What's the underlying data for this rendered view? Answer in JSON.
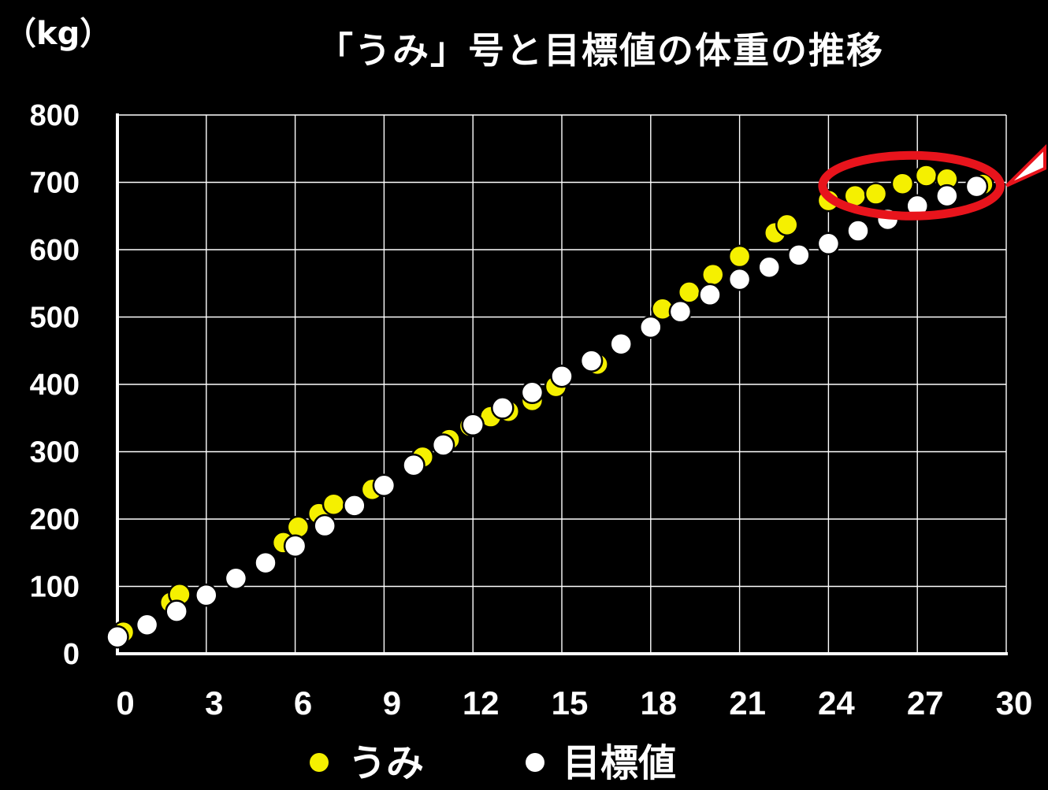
{
  "chart_data": {
    "type": "scatter",
    "title": "「うみ」号と目標値の体重の推移",
    "ylabel": "（kg）",
    "xlabel": "",
    "xlim": [
      0,
      30
    ],
    "ylim": [
      0,
      800
    ],
    "x_ticks": [
      "0",
      "3",
      "6",
      "9",
      "12",
      "15",
      "18",
      "21",
      "24",
      "27",
      "30"
    ],
    "y_ticks": [
      "0",
      "100",
      "200",
      "300",
      "400",
      "500",
      "600",
      "700",
      "800"
    ],
    "grid": true,
    "legend_position": "bottom",
    "highlight": {
      "shape": "ellipse",
      "color": "#e8141c",
      "x_range": [
        23.8,
        29.8
      ],
      "y_range": [
        650,
        740
      ],
      "pointer": "right"
    },
    "series": [
      {
        "name": "うみ",
        "color": "#f5f000",
        "points": [
          [
            0.2,
            32
          ],
          [
            1.8,
            76
          ],
          [
            2.1,
            88
          ],
          [
            5.6,
            165
          ],
          [
            6.1,
            188
          ],
          [
            6.8,
            208
          ],
          [
            7.3,
            222
          ],
          [
            8.6,
            244
          ],
          [
            10.3,
            292
          ],
          [
            11.2,
            318
          ],
          [
            11.9,
            338
          ],
          [
            12.6,
            352
          ],
          [
            13.2,
            360
          ],
          [
            14.0,
            376
          ],
          [
            14.8,
            397
          ],
          [
            16.2,
            430
          ],
          [
            18.4,
            512
          ],
          [
            19.3,
            537
          ],
          [
            20.1,
            563
          ],
          [
            21.0,
            590
          ],
          [
            22.2,
            625
          ],
          [
            22.6,
            637
          ],
          [
            24.0,
            673
          ],
          [
            24.9,
            680
          ],
          [
            25.6,
            683
          ],
          [
            26.5,
            698
          ],
          [
            27.3,
            710
          ],
          [
            28.0,
            705
          ],
          [
            29.2,
            697
          ]
        ]
      },
      {
        "name": "目標値",
        "color": "#ffffff",
        "points": [
          [
            0.0,
            25
          ],
          [
            1.0,
            43
          ],
          [
            2.0,
            63
          ],
          [
            3.0,
            87
          ],
          [
            4.0,
            112
          ],
          [
            5.0,
            135
          ],
          [
            6.0,
            160
          ],
          [
            7.0,
            190
          ],
          [
            8.0,
            220
          ],
          [
            9.0,
            250
          ],
          [
            10.0,
            280
          ],
          [
            11.0,
            310
          ],
          [
            12.0,
            340
          ],
          [
            13.0,
            365
          ],
          [
            14.0,
            388
          ],
          [
            15.0,
            412
          ],
          [
            16.0,
            435
          ],
          [
            17.0,
            460
          ],
          [
            18.0,
            485
          ],
          [
            19.0,
            508
          ],
          [
            20.0,
            533
          ],
          [
            21.0,
            556
          ],
          [
            22.0,
            574
          ],
          [
            23.0,
            592
          ],
          [
            24.0,
            609
          ],
          [
            25.0,
            628
          ],
          [
            26.0,
            645
          ],
          [
            27.0,
            665
          ],
          [
            28.0,
            680
          ],
          [
            29.0,
            694
          ]
        ]
      }
    ]
  }
}
